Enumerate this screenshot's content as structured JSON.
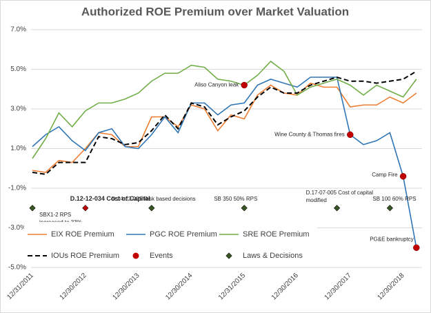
{
  "chart_data": {
    "type": "line",
    "title": "Authorized ROE Premium over Market Valuation",
    "categories": [
      "12/31/2011",
      null,
      null,
      null,
      "12/30/2012",
      null,
      null,
      null,
      "12/30/2013",
      null,
      null,
      null,
      "12/30/2014",
      null,
      null,
      null,
      "12/31/2015",
      null,
      null,
      null,
      "12/30/2016",
      null,
      null,
      null,
      "12/30/2017",
      null,
      null,
      null,
      "12/30/2018",
      null
    ],
    "ylim": [
      -5,
      7
    ],
    "yticks": [
      {
        "value": -5,
        "label": "-5.0%"
      },
      {
        "value": -3,
        "label": "-3.0%"
      },
      {
        "value": -1,
        "label": "-1.0%"
      },
      {
        "value": 1,
        "label": "1.0%"
      },
      {
        "value": 3,
        "label": "3.0%"
      },
      {
        "value": 5,
        "label": "5.0%"
      },
      {
        "value": 7,
        "label": "7.0%"
      }
    ],
    "grid": true,
    "series": [
      {
        "name": "EIX ROE Premium",
        "color": "#ed7d31",
        "dash": false,
        "values": [
          -0.1,
          -0.2,
          0.4,
          0.3,
          1.0,
          1.8,
          1.7,
          1.1,
          1.1,
          2.6,
          2.6,
          2.1,
          3.2,
          3.0,
          1.9,
          2.7,
          2.5,
          3.7,
          4.2,
          3.8,
          3.7,
          4.3,
          4.1,
          4.1,
          3.1,
          3.2,
          3.2,
          3.6,
          3.3,
          3.8
        ]
      },
      {
        "name": "PGC ROE Premium",
        "color": "#2e75b6",
        "dash": false,
        "values": [
          1.1,
          1.7,
          2.1,
          1.4,
          0.9,
          1.8,
          2.0,
          1.1,
          1.0,
          1.7,
          2.6,
          1.8,
          3.3,
          3.3,
          2.7,
          3.2,
          3.3,
          4.2,
          4.5,
          4.3,
          4.1,
          4.6,
          4.6,
          4.6,
          1.7,
          1.2,
          1.4,
          1.8,
          -0.4,
          -4.0
        ]
      },
      {
        "name": "SRE ROE Premium",
        "color": "#70ad47",
        "dash": false,
        "values": [
          0.5,
          1.5,
          2.8,
          2.1,
          2.9,
          3.3,
          3.3,
          3.5,
          3.8,
          4.4,
          4.8,
          4.8,
          5.2,
          5.1,
          4.5,
          4.4,
          4.2,
          4.7,
          5.4,
          4.9,
          3.7,
          4.1,
          4.3,
          4.5,
          4.2,
          3.7,
          4.2,
          3.9,
          3.6,
          4.5
        ]
      },
      {
        "name": "IOUs ROE Premium",
        "color": "#000000",
        "dash": true,
        "values": [
          -0.2,
          -0.3,
          0.3,
          0.3,
          0.3,
          1.6,
          1.5,
          1.2,
          1.3,
          1.9,
          2.7,
          2.0,
          3.3,
          3.1,
          2.2,
          2.6,
          2.9,
          3.6,
          4.1,
          3.8,
          3.8,
          4.2,
          4.4,
          4.6,
          4.4,
          4.4,
          4.3,
          4.4,
          4.5,
          4.9
        ]
      }
    ],
    "events": {
      "name": "Events",
      "color": "#c00000",
      "points": [
        {
          "index": 16,
          "value": 4.2,
          "label": [
            "Aliso Canyon leak"
          ]
        },
        {
          "index": 24,
          "value": 1.7,
          "label": [
            "Wine County & Thomas fires"
          ]
        },
        {
          "index": 28,
          "value": -0.4,
          "label": [
            "Camp Fire"
          ]
        },
        {
          "index": 29,
          "value": -4.0,
          "label": [
            "PG&E bankruptcy"
          ]
        }
      ]
    },
    "laws": {
      "name": "Laws & Decisions",
      "color": "#375623",
      "points": [
        {
          "index": 0,
          "value": -2.0,
          "label": [
            "SBX1-2 RPS",
            "increased to 33%"
          ]
        },
        {
          "index": 4,
          "value": -2.0,
          "label": [
            "D.12-12-034 Cost of Capital"
          ],
          "color": "#c00000",
          "bold": true
        },
        {
          "index": 9,
          "value": -2.0,
          "label": [
            "D.14-12-025 Risk based decisions"
          ]
        },
        {
          "index": 16,
          "value": -2.0,
          "label": [
            "SB 350 50% RPS"
          ]
        },
        {
          "index": 23,
          "value": -2.0,
          "label": [
            "D.17-07-005 Cost of capital",
            "modified"
          ]
        },
        {
          "index": 27,
          "value": -2.0,
          "label": [
            "SB 100 60% RPS"
          ]
        }
      ]
    }
  }
}
